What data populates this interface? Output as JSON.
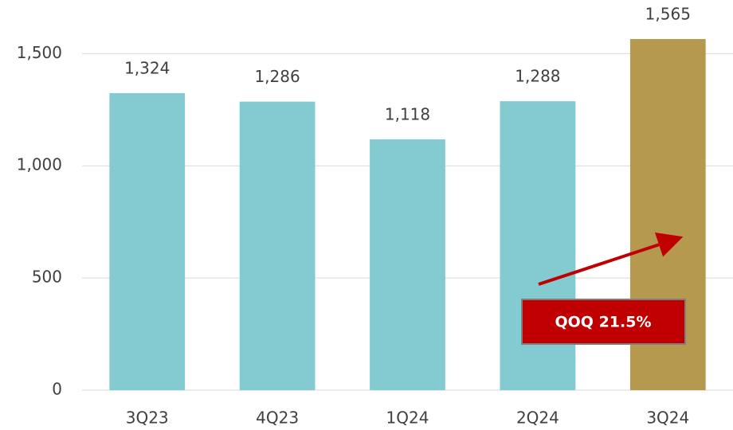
{
  "chart_data": {
    "type": "bar",
    "categories": [
      "3Q23",
      "4Q23",
      "1Q24",
      "2Q24",
      "3Q24"
    ],
    "values": [
      1324,
      1286,
      1118,
      1288,
      1565
    ],
    "value_labels": [
      "1,324",
      "1,286",
      "1,118",
      "1,288",
      "1,565"
    ],
    "colors": [
      "#84cbd1",
      "#84cbd1",
      "#84cbd1",
      "#84cbd1",
      "#b5994f"
    ],
    "ylim": [
      0,
      1700
    ],
    "yticks": [
      0,
      500,
      {
        "value": 1000,
        "label": "1,000"
      },
      {
        "value": 1500,
        "label": "1,500"
      }
    ],
    "grid": true,
    "annotation": "QOQ 21.5%"
  }
}
